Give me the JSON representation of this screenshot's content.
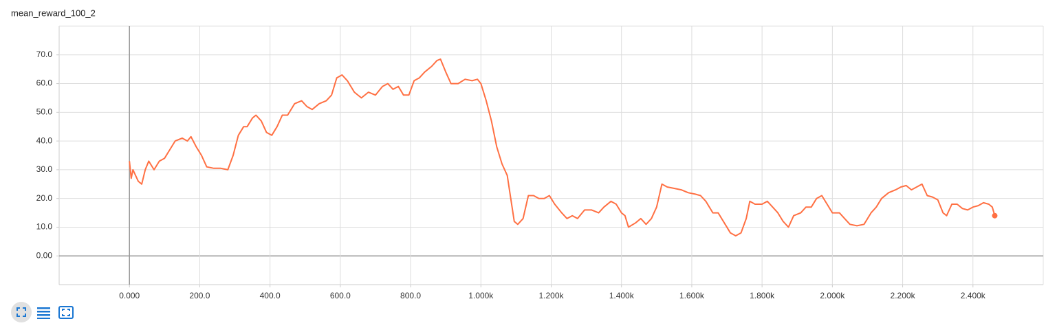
{
  "chart_data": {
    "type": "line",
    "title": "mean_reward_100_2",
    "color": "#ff7043",
    "grid": true,
    "x": [
      0,
      5,
      10,
      25,
      35,
      45,
      55,
      70,
      85,
      100,
      115,
      130,
      150,
      165,
      175,
      190,
      205,
      220,
      240,
      260,
      280,
      295,
      310,
      325,
      335,
      350,
      360,
      375,
      390,
      405,
      420,
      435,
      450,
      470,
      490,
      505,
      520,
      540,
      560,
      575,
      590,
      605,
      620,
      640,
      660,
      680,
      700,
      720,
      735,
      750,
      765,
      780,
      795,
      810,
      825,
      840,
      860,
      875,
      885,
      900,
      915,
      935,
      955,
      975,
      990,
      1000,
      1015,
      1030,
      1045,
      1060,
      1075,
      1085,
      1095,
      1105,
      1120,
      1135,
      1150,
      1165,
      1180,
      1195,
      1210,
      1230,
      1245,
      1260,
      1275,
      1295,
      1315,
      1335,
      1350,
      1370,
      1385,
      1400,
      1410,
      1420,
      1440,
      1455,
      1470,
      1485,
      1500,
      1515,
      1530,
      1550,
      1570,
      1590,
      1610,
      1625,
      1640,
      1660,
      1675,
      1695,
      1710,
      1725,
      1740,
      1755,
      1765,
      1780,
      1800,
      1815,
      1830,
      1845,
      1860,
      1875,
      1890,
      1910,
      1925,
      1940,
      1955,
      1970,
      1985,
      2000,
      2020,
      2035,
      2050,
      2070,
      2090,
      2110,
      2125,
      2140,
      2160,
      2180,
      2195,
      2210,
      2225,
      2240,
      2255,
      2270,
      2285,
      2300,
      2315,
      2325,
      2340,
      2355,
      2370,
      2385,
      2400,
      2415,
      2430,
      2445,
      2455,
      2462
    ],
    "values": [
      33,
      27,
      30,
      26,
      25,
      30,
      33,
      30,
      33,
      34,
      37,
      40,
      41,
      40,
      41.5,
      38,
      35,
      31,
      30.5,
      30.5,
      30,
      35,
      42,
      45,
      45,
      48,
      49,
      47,
      43,
      42,
      45,
      49,
      49,
      53,
      54,
      52,
      51,
      53,
      54,
      56,
      62,
      63,
      61,
      57,
      55,
      57,
      56,
      59,
      60,
      58,
      59,
      56,
      56,
      61,
      62,
      64,
      66,
      68,
      68.5,
      64,
      60,
      60,
      61.5,
      61,
      61.5,
      60,
      54,
      47,
      38,
      32,
      28,
      20,
      12,
      11,
      13,
      21,
      21,
      20,
      20,
      21,
      18,
      15,
      13,
      14,
      13,
      16,
      16,
      15,
      17,
      19,
      18,
      15,
      14,
      10,
      11.5,
      13,
      11,
      13,
      17,
      25,
      24,
      23.5,
      23,
      22,
      21.5,
      21,
      19,
      15,
      15,
      11,
      8,
      7,
      8,
      13,
      19,
      18,
      18,
      19,
      17,
      15,
      12,
      10,
      14,
      15,
      17,
      17,
      20,
      21,
      18,
      15,
      15,
      13,
      11,
      10.5,
      11,
      15,
      17,
      20,
      22,
      23,
      24,
      24.5,
      23,
      24,
      25,
      21,
      20.5,
      19.5,
      15,
      14,
      18,
      18,
      16.5,
      16,
      17,
      17.5,
      18.5,
      18,
      17,
      14
    ],
    "xlim": [
      -200,
      2600
    ],
    "ylim": [
      -10,
      80
    ],
    "xticks": [
      {
        "value": 0,
        "label": "0.000"
      },
      {
        "value": 200,
        "label": "200.0"
      },
      {
        "value": 400,
        "label": "400.0"
      },
      {
        "value": 600,
        "label": "600.0"
      },
      {
        "value": 800,
        "label": "800.0"
      },
      {
        "value": 1000,
        "label": "1.000k"
      },
      {
        "value": 1200,
        "label": "1.200k"
      },
      {
        "value": 1400,
        "label": "1.400k"
      },
      {
        "value": 1600,
        "label": "1.600k"
      },
      {
        "value": 1800,
        "label": "1.800k"
      },
      {
        "value": 2000,
        "label": "2.000k"
      },
      {
        "value": 2200,
        "label": "2.200k"
      },
      {
        "value": 2400,
        "label": "2.400k"
      }
    ],
    "yticks": [
      {
        "value": 0,
        "label": "0.00"
      },
      {
        "value": 10,
        "label": "10.0"
      },
      {
        "value": 20,
        "label": "20.0"
      },
      {
        "value": 30,
        "label": "30.0"
      },
      {
        "value": 40,
        "label": "40.0"
      },
      {
        "value": 50,
        "label": "50.0"
      },
      {
        "value": 60,
        "label": "60.0"
      },
      {
        "value": 70,
        "label": "70.0"
      }
    ]
  }
}
